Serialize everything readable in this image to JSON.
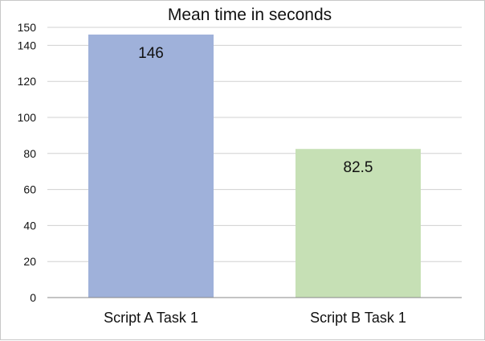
{
  "chart_data": {
    "type": "bar",
    "title": "Mean time in seconds",
    "xlabel": "",
    "ylabel": "",
    "categories": [
      "Script A Task 1",
      "Script B Task 1"
    ],
    "values": [
      146,
      82.5
    ],
    "data_labels": [
      "146",
      "82.5"
    ],
    "bar_colors": [
      "#9fb1da",
      "#c6e0b5"
    ],
    "ylim": [
      0,
      150
    ],
    "yticks": [
      0,
      20,
      40,
      60,
      80,
      100,
      120,
      140,
      150
    ],
    "ytick_labels": [
      "0",
      "20",
      "40",
      "60",
      "80",
      "100",
      "120",
      "140",
      "150"
    ],
    "grid": true,
    "legend": "none"
  },
  "colors": {
    "gridline": "#d0d0d0",
    "axis": "#888888",
    "text": "#111111"
  }
}
